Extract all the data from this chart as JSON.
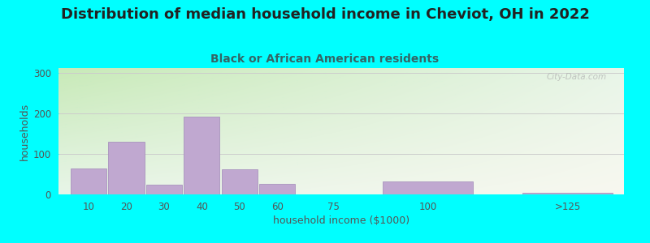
{
  "title": "Distribution of median household income in Cheviot, OH in 2022",
  "subtitle": "Black or African American residents",
  "xlabel": "household income ($1000)",
  "ylabel": "households",
  "bg_color": "#00FFFF",
  "bar_color": "#C0A8D0",
  "bar_edge_color": "#A088B8",
  "values": [
    65,
    130,
    25,
    193,
    63,
    27,
    0,
    32,
    5
  ],
  "bar_positions": [
    10,
    20,
    30,
    40,
    50,
    60,
    75,
    100,
    137
  ],
  "bar_widths": [
    9.5,
    9.5,
    9.5,
    9.5,
    9.5,
    9.5,
    14.0,
    24.0,
    24.0
  ],
  "xtick_positions": [
    10,
    20,
    30,
    40,
    50,
    60,
    75,
    100,
    137
  ],
  "xtick_labels": [
    "10",
    "20",
    "30",
    "40",
    "50",
    "60",
    "75",
    "100",
    ">125"
  ],
  "yticks": [
    0,
    100,
    200,
    300
  ],
  "xlim": [
    2,
    152
  ],
  "ylim": [
    0,
    312
  ],
  "grid_color": "#CCCCCC",
  "title_fontsize": 13,
  "subtitle_fontsize": 10,
  "label_fontsize": 9,
  "tick_fontsize": 8.5,
  "title_color": "#222222",
  "subtitle_color": "#336666",
  "axis_label_color": "#555555",
  "gradient_tl": "#C8EAB8",
  "gradient_tr": "#E8F5E8",
  "gradient_bl": "#E8F5E8",
  "gradient_br": "#F8F8F0",
  "watermark": "City-Data.com"
}
